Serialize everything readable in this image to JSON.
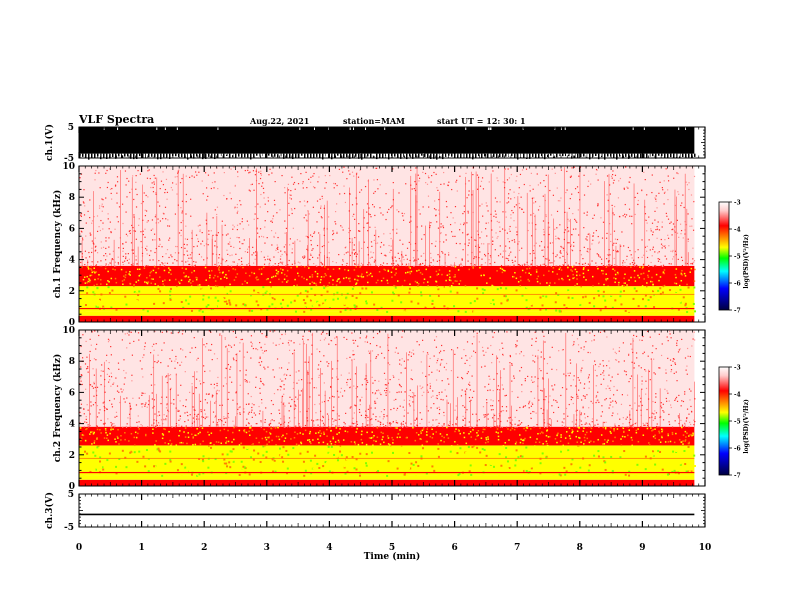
{
  "header": {
    "title": "VLF Spectra",
    "date": "Aug.22, 2021",
    "station": "station=MAM",
    "start": "start UT =  12: 30: 1"
  },
  "chart_data": [
    {
      "type": "line",
      "panel": "ch1-waveform",
      "ylabel": "ch.1(V)",
      "ylim": [
        -5,
        5
      ],
      "yticks": [
        "5",
        "-5"
      ],
      "xlim": [
        0,
        10
      ],
      "data_end_min": 9.83,
      "description_fill": "dense waveform filling -4 to +5 V"
    },
    {
      "type": "heatmap",
      "panel": "ch1-spectrogram",
      "ylabel": "ch.1 Frequency (kHz)",
      "ylim": [
        0,
        10
      ],
      "yticks": [
        "0",
        "2",
        "4",
        "6",
        "8",
        "10"
      ],
      "xlim": [
        0,
        10
      ],
      "data_end_min": 9.83,
      "log_psd_bands": [
        {
          "f_from": 0,
          "f_to": 0.4,
          "level": -4.0
        },
        {
          "f_from": 0.4,
          "f_to": 0.7,
          "level": -5.0
        },
        {
          "f_from": 0.7,
          "f_to": 2.3,
          "level": -5.0
        },
        {
          "f_from": 2.3,
          "f_to": 3.6,
          "level": -4.0
        },
        {
          "f_from": 3.6,
          "f_to": 10,
          "level": -3.4
        }
      ],
      "colorbar": {
        "label": "log(PSD)(V²/Hz)",
        "ticks": [
          "-3",
          "-4",
          "-5",
          "-6",
          "-7"
        ],
        "range": [
          -7,
          -3
        ]
      }
    },
    {
      "type": "heatmap",
      "panel": "ch2-spectrogram",
      "ylabel": "ch.2 Frequency (kHz)",
      "ylim": [
        0,
        10
      ],
      "yticks": [
        "0",
        "2",
        "4",
        "6",
        "8",
        "10"
      ],
      "xlim": [
        0,
        10
      ],
      "data_end_min": 9.83,
      "log_psd_bands": [
        {
          "f_from": 0,
          "f_to": 0.4,
          "level": -4.0
        },
        {
          "f_from": 0.4,
          "f_to": 0.7,
          "level": -5.0
        },
        {
          "f_from": 0.7,
          "f_to": 2.6,
          "level": -5.0
        },
        {
          "f_from": 2.6,
          "f_to": 3.8,
          "level": -4.0
        },
        {
          "f_from": 3.8,
          "f_to": 10,
          "level": -3.4
        }
      ],
      "colorbar": {
        "label": "log(PSD)(V²/Hz)",
        "ticks": [
          "-3",
          "-4",
          "-5",
          "-6",
          "-7"
        ],
        "range": [
          -7,
          -3
        ]
      }
    },
    {
      "type": "line",
      "panel": "ch3-waveform",
      "ylabel": "ch.3(V)",
      "ylim": [
        -5,
        5
      ],
      "yticks": [
        "5",
        "-5"
      ],
      "xlim": [
        0,
        10
      ],
      "x": [
        0,
        9.83
      ],
      "y": [
        -1.2,
        -1.2
      ]
    }
  ],
  "xaxis": {
    "label": "Time (min)",
    "ticks": [
      "0",
      "1",
      "2",
      "3",
      "4",
      "5",
      "6",
      "7",
      "8",
      "9",
      "10"
    ]
  },
  "colors": {
    "low": "#00ff00",
    "mid": "#ff0000",
    "high": "#ffffff",
    "axes": "#000000"
  }
}
